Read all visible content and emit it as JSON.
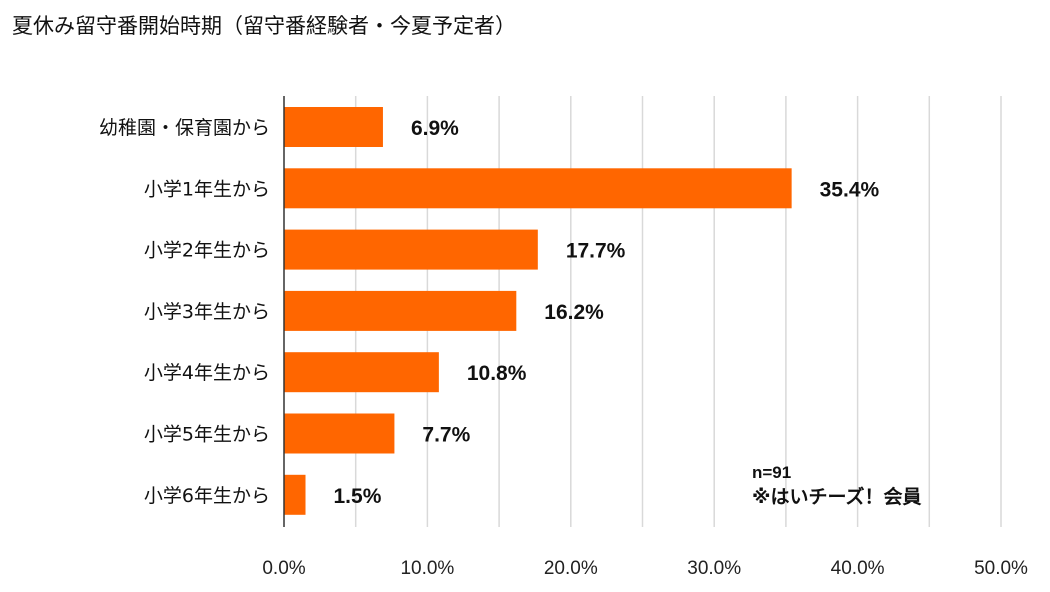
{
  "chart_data": {
    "type": "bar",
    "orientation": "horizontal",
    "title": "夏休み留守番開始時期（留守番経験者・今夏予定者）",
    "categories": [
      "幼稚園・保育園から",
      "小学1年生から",
      "小学2年生から",
      "小学3年生から",
      "小学4年生から",
      "小学5年生から",
      "小学6年生から"
    ],
    "values": [
      6.9,
      35.4,
      17.7,
      16.2,
      10.8,
      7.7,
      1.5
    ],
    "data_labels": [
      "6.9%",
      "35.4%",
      "17.7%",
      "16.2%",
      "10.8%",
      "7.7%",
      "1.5%"
    ],
    "xlim": [
      0,
      50
    ],
    "xticks": [
      0,
      10,
      20,
      30,
      40,
      50
    ],
    "xtick_labels": [
      "0.0%",
      "10.0%",
      "20.0%",
      "30.0%",
      "40.0%",
      "50.0%"
    ],
    "minor_grid_step": 5,
    "grid": true,
    "xlabel": "",
    "ylabel": "",
    "bar_color": "#FF6600",
    "annotations": [
      "n=91",
      "※はいチーズ！会員"
    ]
  }
}
